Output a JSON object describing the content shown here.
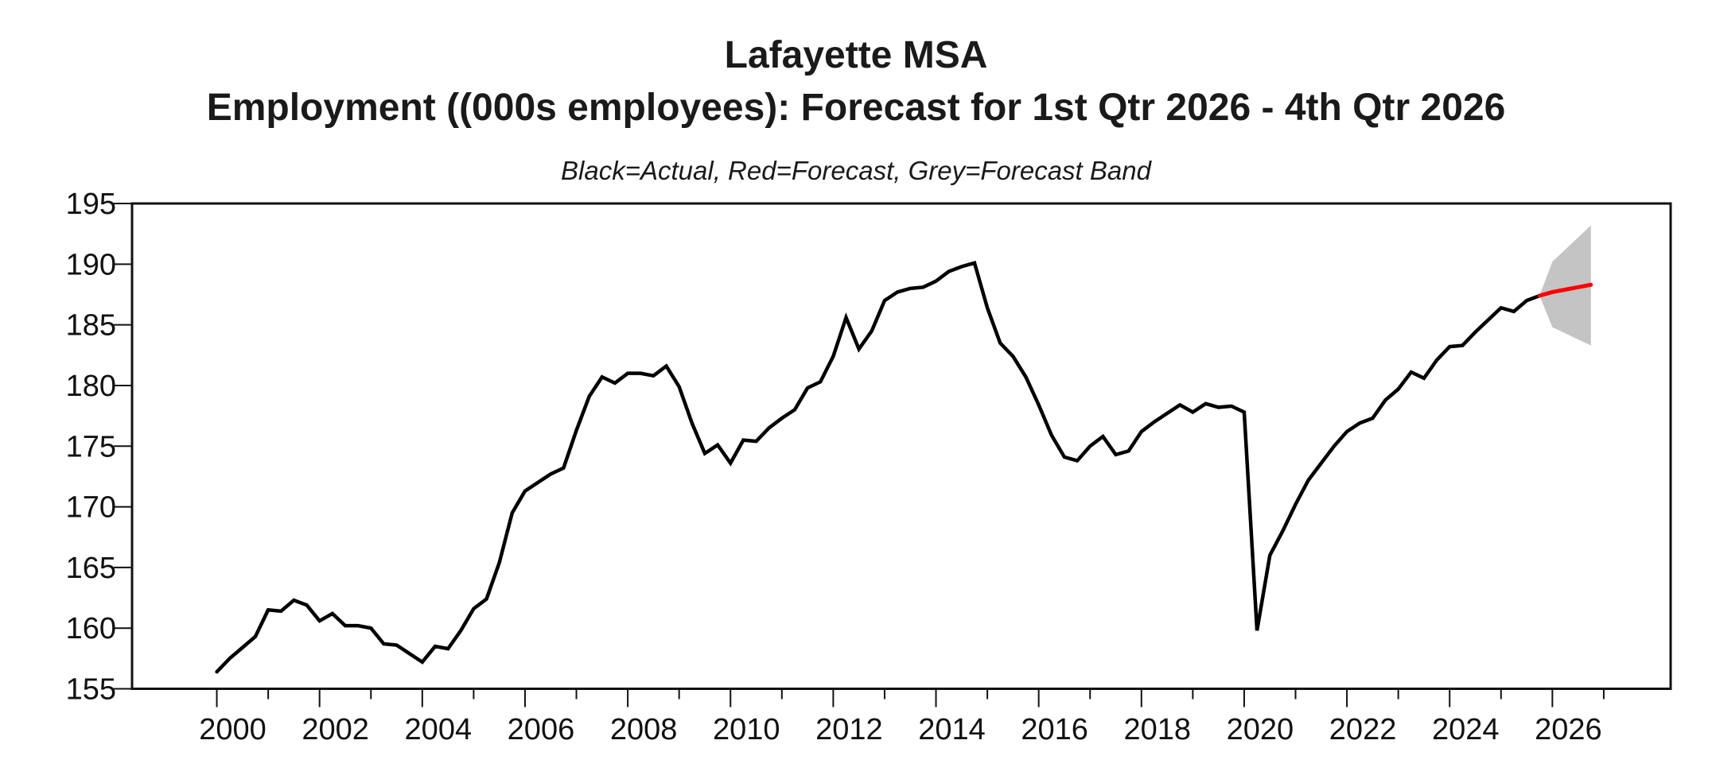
{
  "header": {
    "title_line1": "Lafayette MSA",
    "title_line2": "Employment ((000s employees): Forecast for 1st Qtr 2026 - 4th Qtr 2026",
    "legend_note": "Black=Actual, Red=Forecast, Grey=Forecast Band"
  },
  "chart_data": {
    "type": "line",
    "title": "Lafayette MSA",
    "subtitle": "Employment ((000s employees): Forecast for 1st Qtr 2026 - 4th Qtr 2026",
    "legend_note": "Black=Actual, Red=Forecast, Grey=Forecast Band",
    "xlabel": "",
    "ylabel": "",
    "units": "thousands of employees",
    "frequency": "quarterly",
    "grid": false,
    "ylim": [
      155,
      195
    ],
    "y_ticks": [
      155,
      160,
      165,
      170,
      175,
      180,
      185,
      190,
      195
    ],
    "x_range_years": [
      1998.35,
      2028.3
    ],
    "x_major_tick_years": [
      2000,
      2002,
      2004,
      2006,
      2008,
      2010,
      2012,
      2014,
      2016,
      2018,
      2020,
      2022,
      2024,
      2026
    ],
    "x_minor_tick_years": [
      2001,
      2003,
      2005,
      2007,
      2009,
      2011,
      2013,
      2015,
      2017,
      2019,
      2021,
      2023,
      2025,
      2027
    ],
    "colors": {
      "actual": "#000000",
      "forecast": "#ff0000",
      "band": "#c4c4c4",
      "axis": "#111111"
    },
    "series": [
      {
        "name": "Actual",
        "role": "actual",
        "color": "#000000",
        "start_year": 2000.0,
        "step_years": 0.25,
        "values": [
          156.4,
          157.5,
          158.4,
          159.3,
          161.5,
          161.4,
          162.3,
          161.9,
          160.6,
          161.2,
          160.2,
          160.2,
          160.0,
          158.7,
          158.6,
          157.9,
          157.2,
          158.5,
          158.3,
          159.8,
          161.6,
          162.4,
          165.4,
          169.5,
          171.3,
          172.0,
          172.7,
          173.2,
          176.3,
          179.1,
          180.7,
          180.2,
          181.0,
          181.0,
          180.8,
          181.6,
          179.9,
          176.9,
          174.4,
          175.1,
          173.6,
          175.5,
          175.4,
          176.5,
          177.3,
          178.0,
          179.8,
          180.3,
          182.4,
          185.6,
          183.0,
          184.5,
          187.0,
          187.7,
          188.0,
          188.1,
          188.6,
          189.4,
          189.8,
          190.1,
          186.4,
          183.5,
          182.4,
          180.7,
          178.4,
          175.9,
          174.1,
          173.8,
          175.0,
          175.8,
          174.3,
          174.6,
          176.2,
          177.0,
          177.7,
          178.4,
          177.8,
          178.5,
          178.2,
          178.3,
          177.8,
          159.8,
          166.0,
          168.0,
          170.2,
          172.2,
          173.6,
          175.0,
          176.2,
          176.9,
          177.3,
          178.8,
          179.7,
          181.1,
          180.6,
          182.1,
          183.2,
          183.3,
          184.4,
          185.4,
          186.4,
          186.1,
          187.0,
          187.4
        ]
      },
      {
        "name": "Forecast",
        "role": "forecast",
        "color": "#ff0000",
        "anchor_year": 2025.75,
        "anchor_value": 187.4,
        "start_year": 2026.0,
        "step_years": 0.25,
        "values": [
          187.7,
          187.9,
          188.1,
          188.3
        ]
      },
      {
        "name": "Forecast Band",
        "role": "band",
        "color": "#c4c4c4",
        "anchor_year": 2025.75,
        "anchor_value": 187.4,
        "start_year": 2026.0,
        "step_years": 0.25,
        "upper": [
          190.2,
          191.2,
          192.2,
          193.2
        ],
        "lower": [
          184.8,
          184.3,
          183.8,
          183.3
        ]
      }
    ]
  }
}
